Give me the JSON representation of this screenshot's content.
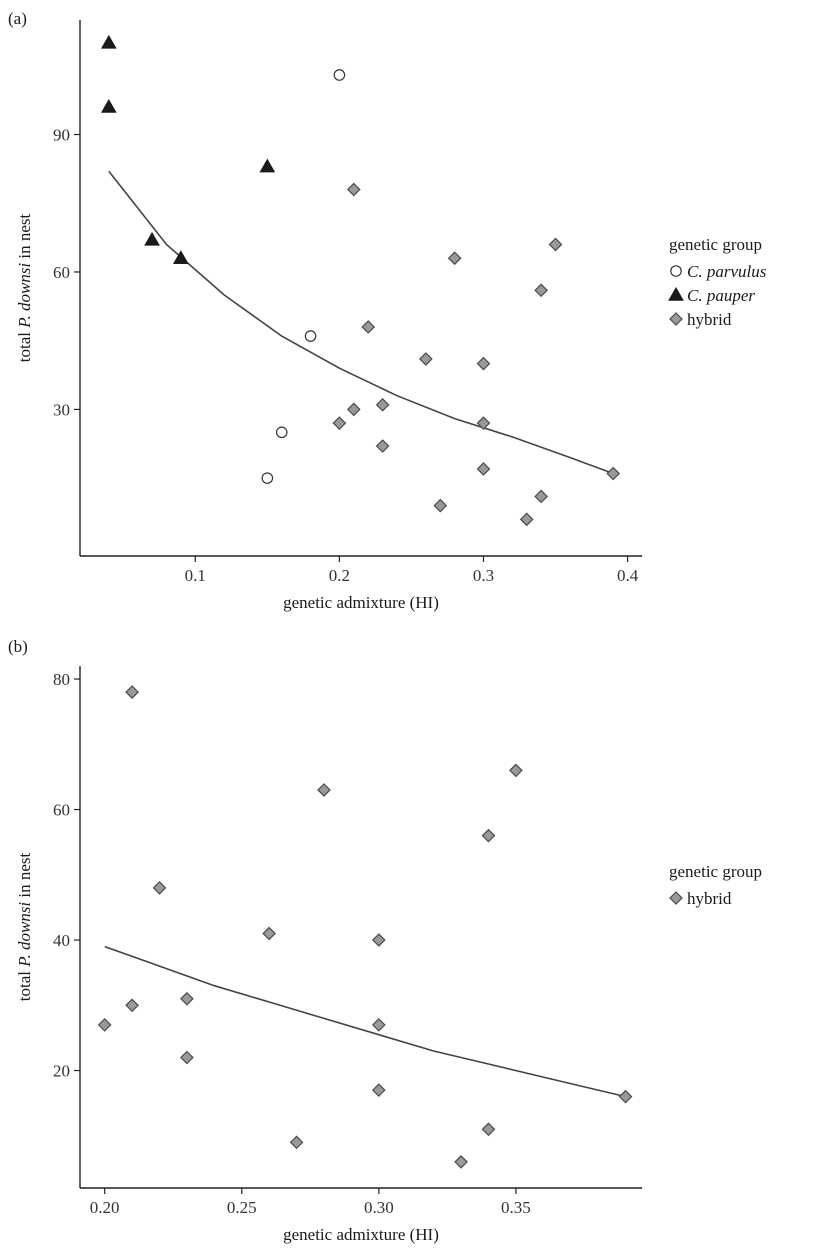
{
  "chart_data": [
    {
      "panel_label": "(a)",
      "type": "scatter",
      "xlabel": "genetic admixture (HI)",
      "ylabel_parts": [
        "total ",
        "P. downsi",
        " in nest"
      ],
      "xlim": [
        0.02,
        0.41
      ],
      "ylim": [
        -2,
        115
      ],
      "x_ticks": [
        0.1,
        0.2,
        0.3,
        0.4
      ],
      "x_tick_labels": [
        "0.1",
        "0.2",
        "0.3",
        "0.4"
      ],
      "y_ticks": [
        30,
        60,
        90
      ],
      "y_tick_labels": [
        "30",
        "60",
        "90"
      ],
      "grid": false,
      "legend": {
        "title": "genetic group",
        "placement": "right",
        "entries": [
          {
            "label": "C. parvulus",
            "italic": true,
            "marker": "circle",
            "color": "#ffffff"
          },
          {
            "label": "C. pauper",
            "italic": true,
            "marker": "triangle",
            "color": "#1a1a1a"
          },
          {
            "label": "hybrid",
            "italic": false,
            "marker": "diamond",
            "color": "#999999"
          }
        ]
      },
      "series": [
        {
          "name": "C. parvulus",
          "marker": "circle",
          "color": "#ffffff",
          "points": [
            [
              0.2,
              103
            ],
            [
              0.18,
              46
            ],
            [
              0.16,
              25
            ],
            [
              0.15,
              15
            ]
          ]
        },
        {
          "name": "C. pauper",
          "marker": "triangle",
          "color": "#1a1a1a",
          "points": [
            [
              0.04,
              110
            ],
            [
              0.04,
              96
            ],
            [
              0.15,
              83
            ],
            [
              0.07,
              67
            ],
            [
              0.09,
              63
            ]
          ]
        },
        {
          "name": "hybrid",
          "marker": "diamond",
          "color": "#999999",
          "points": [
            [
              0.21,
              78
            ],
            [
              0.35,
              66
            ],
            [
              0.28,
              63
            ],
            [
              0.34,
              56
            ],
            [
              0.22,
              48
            ],
            [
              0.26,
              41
            ],
            [
              0.3,
              40
            ],
            [
              0.23,
              31
            ],
            [
              0.21,
              30
            ],
            [
              0.2,
              27
            ],
            [
              0.3,
              27
            ],
            [
              0.23,
              22
            ],
            [
              0.3,
              17
            ],
            [
              0.39,
              16
            ],
            [
              0.34,
              11
            ],
            [
              0.27,
              9
            ],
            [
              0.33,
              6
            ]
          ]
        }
      ],
      "fit_curve": {
        "x": [
          0.04,
          0.08,
          0.12,
          0.16,
          0.2,
          0.24,
          0.28,
          0.32,
          0.36,
          0.39
        ],
        "y": [
          82,
          66,
          55,
          46,
          39,
          33,
          28,
          24,
          19.5,
          16
        ]
      }
    },
    {
      "panel_label": "(b)",
      "type": "scatter",
      "xlabel": "genetic admixture (HI)",
      "ylabel_parts": [
        "total ",
        "P. downsi",
        " in nest"
      ],
      "xlim": [
        0.191,
        0.396
      ],
      "ylim": [
        2,
        82
      ],
      "x_ticks": [
        0.2,
        0.25,
        0.3,
        0.35
      ],
      "x_tick_labels": [
        "0.20",
        "0.25",
        "0.30",
        "0.35"
      ],
      "y_ticks": [
        20,
        40,
        60,
        80
      ],
      "y_tick_labels": [
        "20",
        "40",
        "60",
        "80"
      ],
      "grid": false,
      "legend": {
        "title": "genetic group",
        "placement": "right",
        "entries": [
          {
            "label": "hybrid",
            "italic": false,
            "marker": "diamond",
            "color": "#999999"
          }
        ]
      },
      "series": [
        {
          "name": "hybrid",
          "marker": "diamond",
          "color": "#999999",
          "points": [
            [
              0.21,
              78
            ],
            [
              0.35,
              66
            ],
            [
              0.28,
              63
            ],
            [
              0.34,
              56
            ],
            [
              0.22,
              48
            ],
            [
              0.26,
              41
            ],
            [
              0.3,
              40
            ],
            [
              0.23,
              31
            ],
            [
              0.21,
              30
            ],
            [
              0.2,
              27
            ],
            [
              0.3,
              27
            ],
            [
              0.23,
              22
            ],
            [
              0.3,
              17
            ],
            [
              0.39,
              16
            ],
            [
              0.34,
              11
            ],
            [
              0.27,
              9
            ],
            [
              0.33,
              6
            ]
          ]
        }
      ],
      "fit_curve": {
        "x": [
          0.2,
          0.22,
          0.24,
          0.26,
          0.28,
          0.3,
          0.32,
          0.34,
          0.36,
          0.38,
          0.39
        ],
        "y": [
          39,
          36,
          33,
          30.5,
          28,
          25.5,
          23,
          21,
          19,
          17,
          16
        ]
      }
    }
  ]
}
